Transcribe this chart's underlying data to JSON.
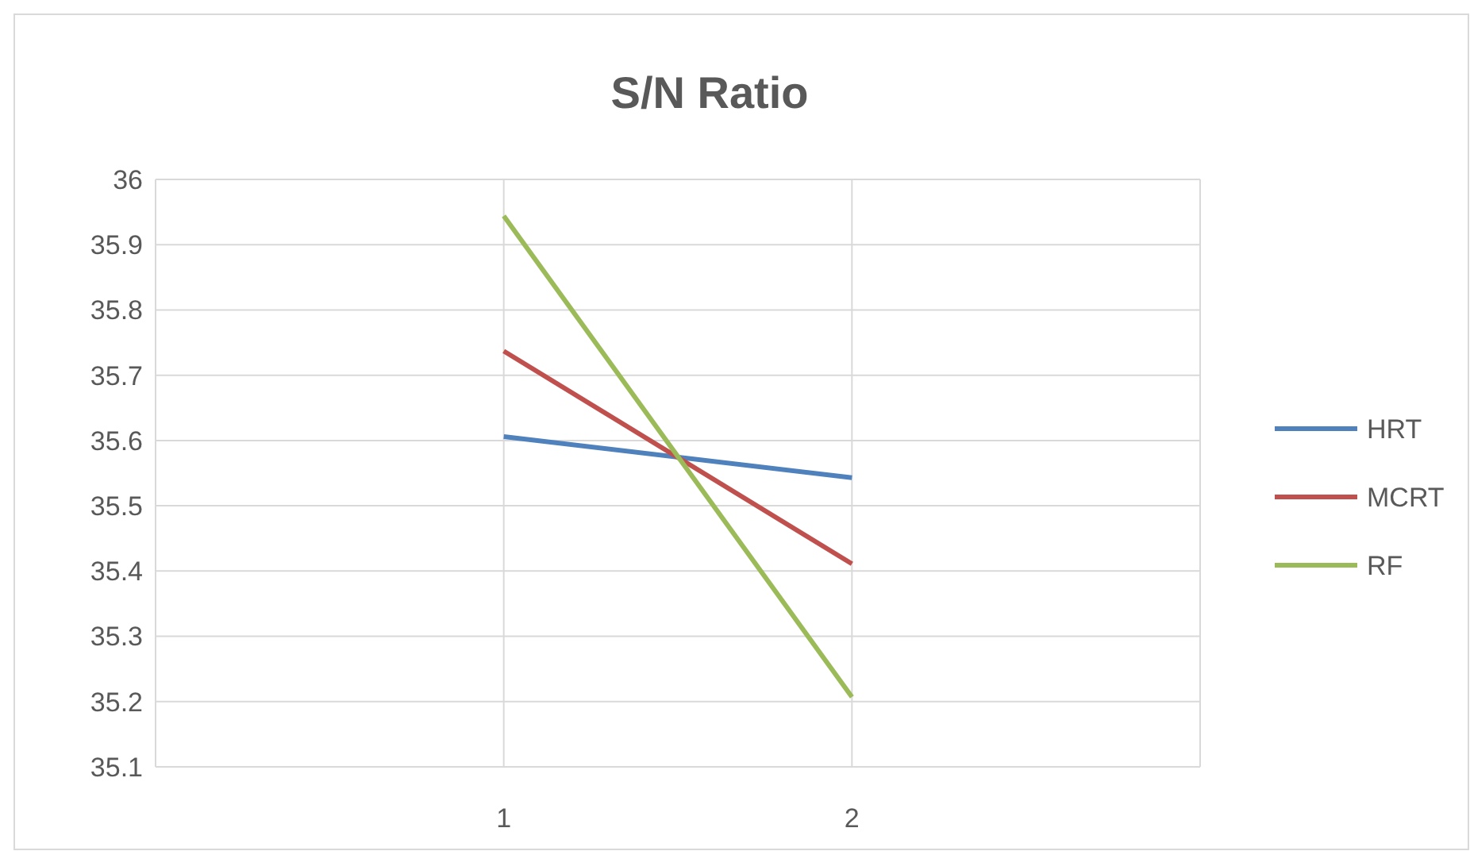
{
  "chart_data": {
    "type": "line",
    "title": "S/N Ratio",
    "categories": [
      "1",
      "2"
    ],
    "series": [
      {
        "name": "HRT",
        "color": "#4f81bd",
        "values": [
          35.606,
          35.543
        ]
      },
      {
        "name": "MCRT",
        "color": "#c0504d",
        "values": [
          35.737,
          35.411
        ]
      },
      {
        "name": "RF",
        "color": "#9bbb59",
        "values": [
          35.944,
          35.207
        ]
      }
    ],
    "ylim": [
      35.1,
      36
    ],
    "yticks": [
      35.1,
      35.2,
      35.3,
      35.4,
      35.5,
      35.6,
      35.7,
      35.8,
      35.9,
      36
    ],
    "grid": true,
    "legend": "right",
    "marker": "none",
    "line_style": "solid"
  }
}
